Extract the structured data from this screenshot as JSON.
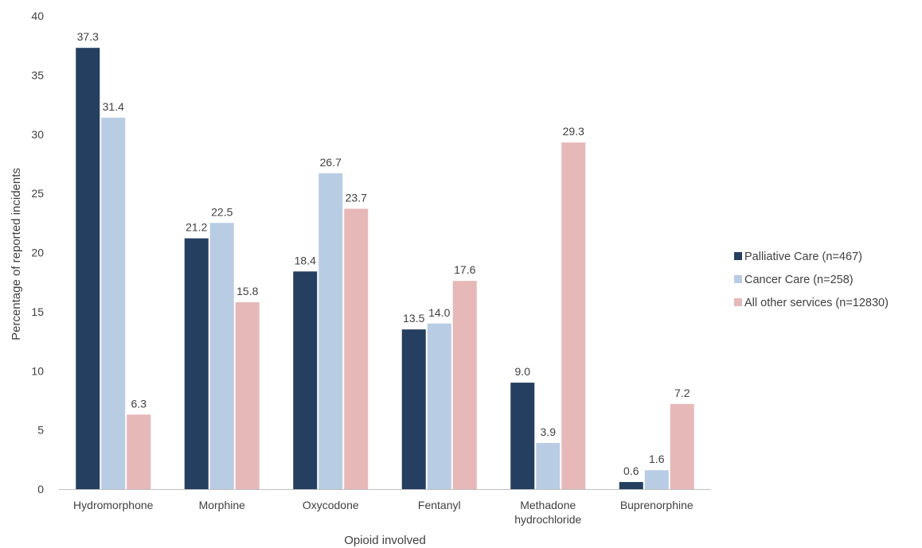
{
  "chart_data": {
    "type": "bar",
    "categories": [
      [
        "Hydromorphone"
      ],
      [
        "Morphine"
      ],
      [
        "Oxycodone"
      ],
      [
        "Fentanyl"
      ],
      [
        "Methadone",
        "hydrochloride"
      ],
      [
        "Buprenorphine"
      ]
    ],
    "series": [
      {
        "name": "Palliative Care (n=467)",
        "color": "#243f60",
        "values": [
          37.3,
          21.2,
          18.4,
          13.5,
          9.0,
          0.6
        ]
      },
      {
        "name": "Cancer Care (n=258)",
        "color": "#b8cce4",
        "values": [
          31.4,
          22.5,
          26.7,
          14.0,
          3.9,
          1.6
        ]
      },
      {
        "name": "All other services (n=12830)",
        "color": "#e6b8b7",
        "values": [
          6.3,
          15.8,
          23.7,
          17.6,
          29.3,
          7.2
        ]
      }
    ],
    "xlabel": "Opioid involved",
    "ylabel": "Percentage of reported incidents",
    "ylim": [
      0,
      40
    ],
    "yticks": [
      0,
      5,
      10,
      15,
      20,
      25,
      30,
      35,
      40
    ],
    "data_label_decimals": 1,
    "grid": false,
    "legend_position": "right"
  }
}
